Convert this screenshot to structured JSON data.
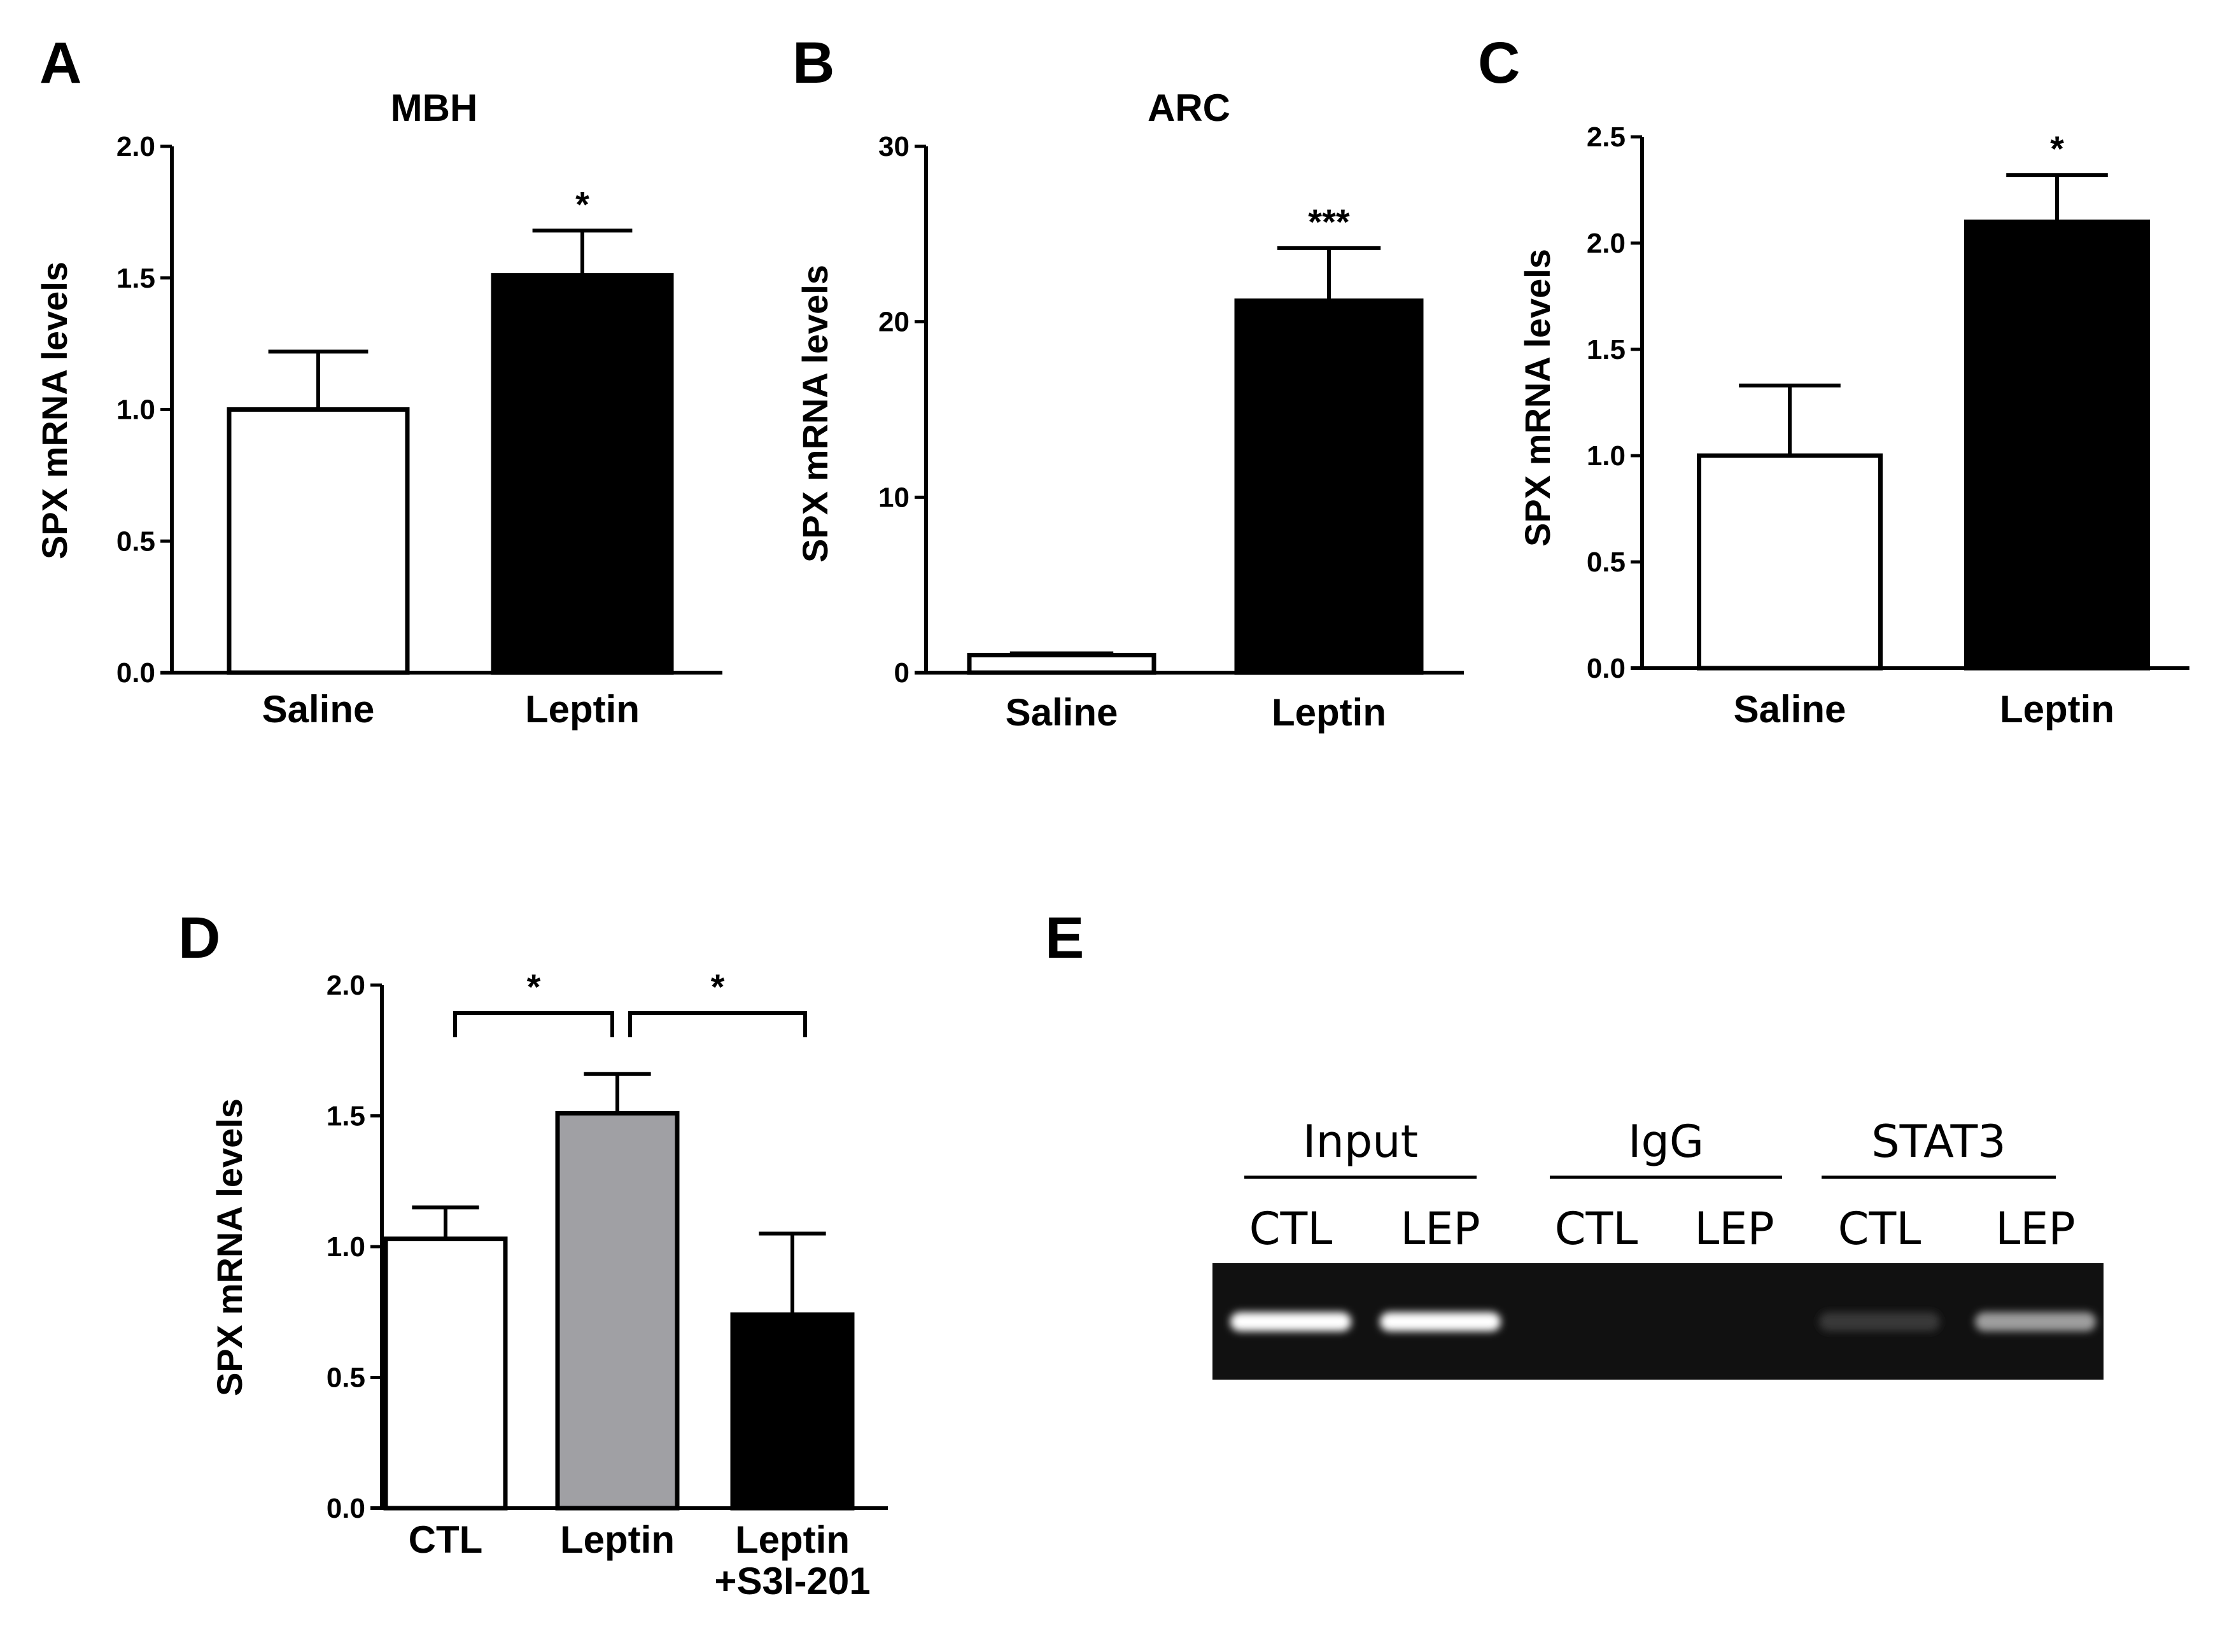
{
  "chart_data": [
    {
      "panel": "A",
      "type": "bar",
      "title": "MBH",
      "ylabel": "SPX mRNA levels",
      "ylim": [
        0,
        2.0
      ],
      "yticks": [
        "0.0",
        "0.5",
        "1.0",
        "1.5",
        "2.0"
      ],
      "categories": [
        "Saline",
        "Leptin"
      ],
      "values": [
        1.0,
        1.51
      ],
      "errors": [
        0.22,
        0.17
      ],
      "colors": [
        "#ffffff",
        "#000000"
      ],
      "significance": [
        "",
        "*"
      ]
    },
    {
      "panel": "B",
      "type": "bar",
      "title": "ARC",
      "ylabel": "SPX mRNA levels",
      "ylim": [
        0,
        30
      ],
      "yticks": [
        "0",
        "10",
        "20",
        "30"
      ],
      "categories": [
        "Saline",
        "Leptin"
      ],
      "values": [
        1.0,
        21.2
      ],
      "errors": [
        0.1,
        3.0
      ],
      "colors": [
        "#ffffff",
        "#000000"
      ],
      "significance": [
        "",
        "***"
      ]
    },
    {
      "panel": "C",
      "type": "bar",
      "title": "",
      "ylabel": "SPX mRNA levels",
      "ylim": [
        0,
        2.5
      ],
      "yticks": [
        "0.0",
        "0.5",
        "1.0",
        "1.5",
        "2.0",
        "2.5"
      ],
      "categories": [
        "Saline",
        "Leptin"
      ],
      "values": [
        1.0,
        2.1
      ],
      "errors": [
        0.33,
        0.22
      ],
      "colors": [
        "#ffffff",
        "#000000"
      ],
      "significance": [
        "",
        "*"
      ]
    },
    {
      "panel": "D",
      "type": "bar",
      "title": "",
      "ylabel": "SPX mRNA levels",
      "ylim": [
        0,
        2.0
      ],
      "yticks": [
        "0.0",
        "0.5",
        "1.0",
        "1.5",
        "2.0"
      ],
      "categories": [
        "CTL",
        "Leptin",
        "Leptin\n+S3I-201"
      ],
      "values": [
        1.03,
        1.51,
        0.74
      ],
      "errors": [
        0.12,
        0.15,
        0.31
      ],
      "colors": [
        "#ffffff",
        "#a0a0a4",
        "#000000"
      ],
      "brackets": [
        {
          "from": 0,
          "to": 1,
          "label": "*"
        },
        {
          "from": 1,
          "to": 2,
          "label": "*"
        }
      ]
    }
  ],
  "gel": {
    "panel": "E",
    "groups": [
      {
        "label": "Input",
        "lanes": [
          "CTL",
          "LEP"
        ],
        "band_intensity": [
          1.0,
          1.0
        ]
      },
      {
        "label": "IgG",
        "lanes": [
          "CTL",
          "LEP"
        ],
        "band_intensity": [
          0.0,
          0.0
        ]
      },
      {
        "label": "STAT3",
        "lanes": [
          "CTL",
          "LEP"
        ],
        "band_intensity": [
          0.08,
          0.55
        ]
      }
    ]
  }
}
